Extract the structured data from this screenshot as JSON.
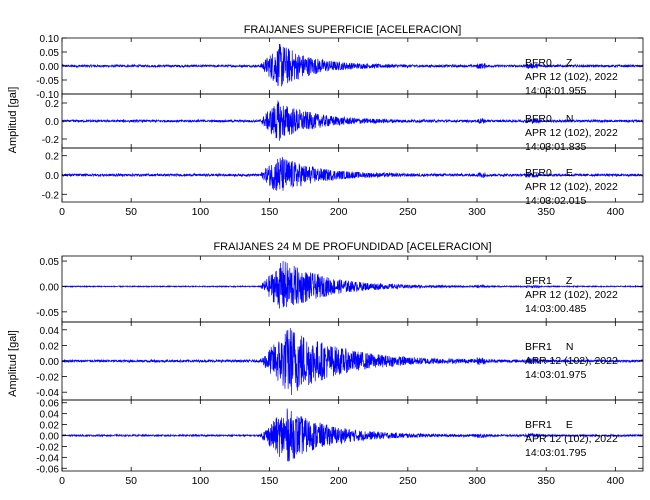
{
  "chart_data": [
    {
      "type": "line",
      "title": "FRAIJANES SUPERFICIE [ACELERACION]",
      "ylabel": "Amplitud [gal]",
      "xlim": [
        0,
        420
      ],
      "xticks": [
        0,
        50,
        100,
        150,
        200,
        250,
        300,
        350,
        400
      ],
      "series_color": "#0000ff",
      "panels": [
        {
          "station": "BFR0",
          "component": "Z",
          "date": "APR 12 (102), 2022",
          "time": "14:03:01.955",
          "ylim": [
            -0.1,
            0.1
          ],
          "yticks": [
            -0.1,
            -0.05,
            0.0,
            0.05,
            0.1
          ],
          "ytick_labels": [
            "-0.10",
            "-0.05",
            "0.00",
            "0.05",
            "0.10"
          ],
          "noise_level": 0.004,
          "onset_s": 143,
          "peak_amplitude": 0.08,
          "peak_time_s": 158,
          "decay_s": 22
        },
        {
          "station": "BFR0",
          "component": "N",
          "date": "APR 12 (102), 2022",
          "time": "14:03:01.835",
          "ylim": [
            -0.3,
            0.3
          ],
          "yticks": [
            -0.2,
            0.0,
            0.2
          ],
          "ytick_labels": [
            "-0.2",
            "0.0",
            "0.2"
          ],
          "noise_level": 0.012,
          "onset_s": 143,
          "peak_amplitude": 0.22,
          "peak_time_s": 156,
          "decay_s": 25
        },
        {
          "station": "BFR0",
          "component": "E",
          "date": "APR 12 (102), 2022",
          "time": "14:03:02.015",
          "ylim": [
            -0.28,
            0.28
          ],
          "yticks": [
            -0.2,
            0.0,
            0.2
          ],
          "ytick_labels": [
            "-0.2",
            "0.0",
            "0.2"
          ],
          "noise_level": 0.012,
          "onset_s": 143,
          "peak_amplitude": 0.2,
          "peak_time_s": 157,
          "decay_s": 25
        }
      ]
    },
    {
      "type": "line",
      "title": "FRAIJANES 24 M DE PROFUNDIDAD [ACELERACION]",
      "ylabel": "Amplitud [gal]",
      "xlim": [
        0,
        420
      ],
      "xticks": [
        0,
        50,
        100,
        150,
        200,
        250,
        300,
        350,
        400
      ],
      "series_color": "#0000ff",
      "panels": [
        {
          "station": "BFR1",
          "component": "Z",
          "date": "APR 12 (102), 2022",
          "time": "14:03:00.485",
          "ylim": [
            -0.07,
            0.06
          ],
          "yticks": [
            -0.05,
            0.0,
            0.05
          ],
          "ytick_labels": [
            "-0.05",
            "0.00",
            "0.05"
          ],
          "noise_level": 0.001,
          "onset_s": 143,
          "peak_amplitude": 0.052,
          "peak_time_s": 160,
          "decay_s": 30
        },
        {
          "station": "BFR1",
          "component": "N",
          "date": "APR 12 (102), 2022",
          "time": "14:03:01.975",
          "ylim": [
            -0.05,
            0.05
          ],
          "yticks": [
            -0.04,
            -0.02,
            0.0,
            0.02,
            0.04
          ],
          "ytick_labels": [
            "-0.04",
            "-0.02",
            "0.00",
            "0.02",
            "0.04"
          ],
          "noise_level": 0.0015,
          "onset_s": 143,
          "peak_amplitude": 0.045,
          "peak_time_s": 165,
          "decay_s": 35
        },
        {
          "station": "BFR1",
          "component": "E",
          "date": "APR 12 (102), 2022",
          "time": "14:03:01.795",
          "ylim": [
            -0.065,
            0.065
          ],
          "yticks": [
            -0.06,
            -0.04,
            -0.02,
            0.0,
            0.02,
            0.04,
            0.06
          ],
          "ytick_labels": [
            "-0.06",
            "-0.04",
            "-0.02",
            "0.00",
            "0.02",
            "0.04",
            "0.06"
          ],
          "noise_level": 0.0015,
          "onset_s": 143,
          "peak_amplitude": 0.05,
          "peak_time_s": 162,
          "decay_s": 30
        }
      ]
    }
  ]
}
